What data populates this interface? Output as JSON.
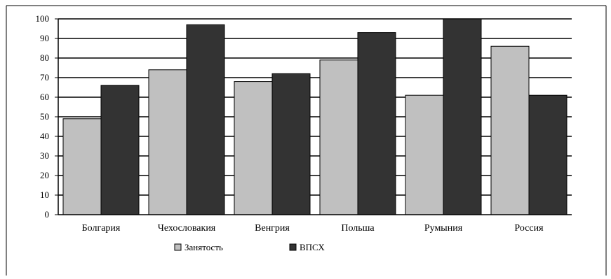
{
  "chart_data": {
    "type": "bar",
    "categories": [
      "Болгария",
      "Чехословакия",
      "Венгрия",
      "Польша",
      "Румыния",
      "Россия"
    ],
    "series": [
      {
        "name": "Занятость",
        "values": [
          49,
          74,
          68,
          79,
          61,
          86
        ],
        "color": "#c0c0c0"
      },
      {
        "name": "ВПСХ",
        "values": [
          66,
          97,
          72,
          93,
          100,
          61
        ],
        "color": "#333333"
      }
    ],
    "title": "",
    "xlabel": "",
    "ylabel": "",
    "ylim": [
      0,
      100
    ],
    "yticks": [
      "0",
      "10",
      "20",
      "30",
      "40",
      "50",
      "60",
      "70",
      "80",
      "90",
      "100"
    ],
    "grid": true,
    "legend": "bottom"
  }
}
